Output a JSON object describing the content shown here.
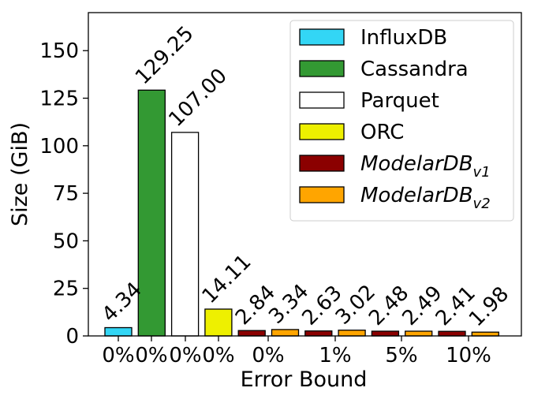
{
  "chart_data": {
    "type": "bar",
    "title": "",
    "xlabel": "Error Bound",
    "ylabel": "Size (GiB)",
    "ylim": [
      0,
      170
    ],
    "yticks": [
      0,
      25,
      50,
      75,
      100,
      125,
      150
    ],
    "grid": false,
    "legend_position": "top-right",
    "xtick_labels": [
      "0%",
      "0%",
      "0%",
      "0%",
      "0%",
      "1%",
      "5%",
      "10%"
    ],
    "series": [
      {
        "name": "InfluxDB",
        "sub": "",
        "color": "#33d6f5",
        "values": [
          4.34
        ]
      },
      {
        "name": "Cassandra",
        "sub": "",
        "color": "#339933",
        "values": [
          129.25
        ]
      },
      {
        "name": "Parquet",
        "sub": "",
        "color": "#ffffff",
        "values": [
          107.0
        ]
      },
      {
        "name": "ORC",
        "sub": "",
        "color": "#eef000",
        "values": [
          14.11
        ]
      },
      {
        "name": "ModelarDB",
        "sub": "v1",
        "color": "#8b0000",
        "values": [
          2.84,
          2.63,
          2.48,
          2.41
        ]
      },
      {
        "name": "ModelarDB",
        "sub": "v2",
        "color": "#ffa500",
        "values": [
          3.34,
          3.02,
          2.49,
          1.98
        ]
      }
    ],
    "bars": [
      {
        "series": 0,
        "value": 4.34,
        "label": "4.34"
      },
      {
        "series": 1,
        "value": 129.25,
        "label": "129.25"
      },
      {
        "series": 2,
        "value": 107.0,
        "label": "107.00"
      },
      {
        "series": 3,
        "value": 14.11,
        "label": "14.11"
      },
      {
        "series": 4,
        "value": 2.84,
        "label": "2.84"
      },
      {
        "series": 5,
        "value": 3.34,
        "label": "3.34"
      },
      {
        "series": 4,
        "value": 2.63,
        "label": "2.63"
      },
      {
        "series": 5,
        "value": 3.02,
        "label": "3.02"
      },
      {
        "series": 4,
        "value": 2.48,
        "label": "2.48"
      },
      {
        "series": 5,
        "value": 2.49,
        "label": "2.49"
      },
      {
        "series": 4,
        "value": 2.41,
        "label": "2.41"
      },
      {
        "series": 5,
        "value": 1.98,
        "label": "1.98"
      }
    ]
  }
}
